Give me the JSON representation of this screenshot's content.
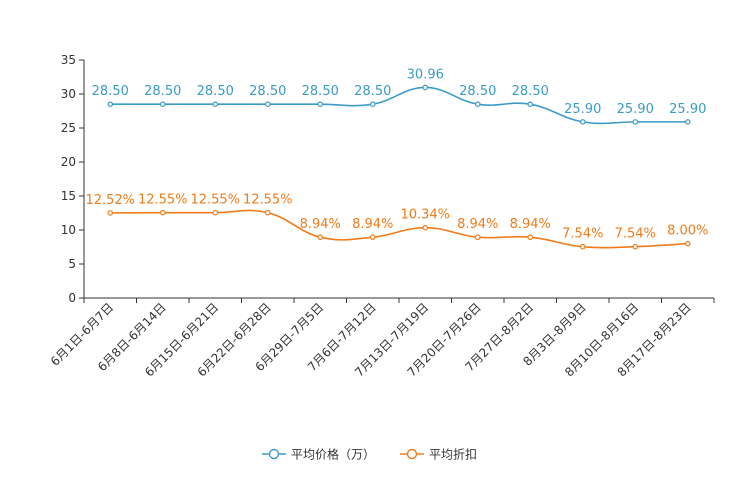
{
  "chart_data": {
    "type": "line",
    "categories": [
      "6月1日-6月7日",
      "6月8日-6月14日",
      "6月15日-6月21日",
      "6月22日-6月28日",
      "6月29日-7月5日",
      "7月6日-7月12日",
      "7月13日-7月19日",
      "7月20日-7月26日",
      "7月27日-8月2日",
      "8月3日-8月9日",
      "8月10日-8月16日",
      "8月17日-8月23日"
    ],
    "ylim": [
      0,
      35
    ],
    "yticks": [
      0,
      5,
      10,
      15,
      20,
      25,
      30,
      35
    ],
    "series": [
      {
        "name": "平均价格（万）",
        "color": "#3a9bc8",
        "values": [
          28.5,
          28.5,
          28.5,
          28.5,
          28.5,
          28.5,
          30.96,
          28.5,
          28.5,
          25.9,
          25.9,
          25.9
        ],
        "labels": [
          "28.50",
          "28.50",
          "28.50",
          "28.50",
          "28.50",
          "28.50",
          "30.96",
          "28.50",
          "28.50",
          "25.90",
          "25.90",
          "25.90"
        ]
      },
      {
        "name": "平均折扣",
        "color": "#f07b1a",
        "values": [
          12.52,
          12.55,
          12.55,
          12.55,
          8.94,
          8.94,
          10.34,
          8.94,
          8.94,
          7.54,
          7.54,
          8.0
        ],
        "labels": [
          "12.52%",
          "12.55%",
          "12.55%",
          "12.55%",
          "8.94%",
          "8.94%",
          "10.34%",
          "8.94%",
          "8.94%",
          "7.54%",
          "7.54%",
          "8.00%"
        ]
      }
    ],
    "legend_position": "bottom-center"
  }
}
